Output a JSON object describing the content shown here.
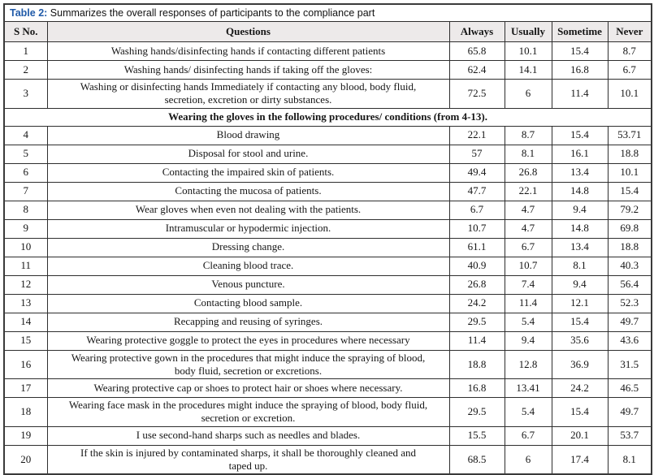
{
  "table": {
    "title_label": "Table 2:",
    "title_text": "Summarizes the overall responses of participants to the compliance part",
    "columns": [
      "S No.",
      "Questions",
      "Always",
      "Usually",
      "Sometime",
      "Never"
    ],
    "rows": [
      {
        "sno": "1",
        "question": "Washing hands/disinfecting hands if contacting different patients",
        "always": "65.8",
        "usually": "10.1",
        "sometime": "15.4",
        "never": "8.7"
      },
      {
        "sno": "2",
        "question": "Washing hands/ disinfecting hands if taking off the gloves:",
        "always": "62.4",
        "usually": "14.1",
        "sometime": "16.8",
        "never": "6.7"
      },
      {
        "sno": "3",
        "question": "Washing or disinfecting hands Immediately if contacting any blood, body fluid, secretion, excretion or dirty substances.",
        "always": "72.5",
        "usually": "6",
        "sometime": "11.4",
        "never": "10.1"
      },
      {
        "section": "Wearing the gloves in the following procedures/ conditions (from 4-13)."
      },
      {
        "sno": "4",
        "question": "Blood drawing",
        "always": "22.1",
        "usually": "8.7",
        "sometime": "15.4",
        "never": "53.71"
      },
      {
        "sno": "5",
        "question": "Disposal for stool and urine.",
        "always": "57",
        "usually": "8.1",
        "sometime": "16.1",
        "never": "18.8"
      },
      {
        "sno": "6",
        "question": "Contacting the impaired skin of patients.",
        "always": "49.4",
        "usually": "26.8",
        "sometime": "13.4",
        "never": "10.1"
      },
      {
        "sno": "7",
        "question": "Contacting the mucosa of patients.",
        "always": "47.7",
        "usually": "22.1",
        "sometime": "14.8",
        "never": "15.4"
      },
      {
        "sno": "8",
        "question": "Wear gloves when even not dealing with the patients.",
        "always": "6.7",
        "usually": "4.7",
        "sometime": "9.4",
        "never": "79.2"
      },
      {
        "sno": "9",
        "question": "Intramuscular or hypodermic injection.",
        "always": "10.7",
        "usually": "4.7",
        "sometime": "14.8",
        "never": "69.8"
      },
      {
        "sno": "10",
        "question": "Dressing change.",
        "always": "61.1",
        "usually": "6.7",
        "sometime": "13.4",
        "never": "18.8"
      },
      {
        "sno": "11",
        "question": "Cleaning blood trace.",
        "always": "40.9",
        "usually": "10.7",
        "sometime": "8.1",
        "never": "40.3"
      },
      {
        "sno": "12",
        "question": "Venous puncture.",
        "always": "26.8",
        "usually": "7.4",
        "sometime": "9.4",
        "never": "56.4"
      },
      {
        "sno": "13",
        "question": "Contacting blood sample.",
        "always": "24.2",
        "usually": "11.4",
        "sometime": "12.1",
        "never": "52.3"
      },
      {
        "sno": "14",
        "question": "Recapping and reusing of syringes.",
        "always": "29.5",
        "usually": "5.4",
        "sometime": "15.4",
        "never": "49.7"
      },
      {
        "sno": "15",
        "question": "Wearing protective goggle to protect the eyes in procedures where necessary",
        "always": "11.4",
        "usually": "9.4",
        "sometime": "35.6",
        "never": "43.6"
      },
      {
        "sno": "16",
        "question": "Wearing protective gown in the procedures that might induce the spraying of blood, body fluid, secretion or excretions.",
        "always": "18.8",
        "usually": "12.8",
        "sometime": "36.9",
        "never": "31.5"
      },
      {
        "sno": "17",
        "question": "Wearing protective cap or shoes to protect hair or shoes where necessary.",
        "always": "16.8",
        "usually": "13.41",
        "sometime": "24.2",
        "never": "46.5"
      },
      {
        "sno": "18",
        "question": "Wearing face mask in the procedures might induce the spraying of blood, body fluid, secretion or excretion.",
        "always": "29.5",
        "usually": "5.4",
        "sometime": "15.4",
        "never": "49.7"
      },
      {
        "sno": "19",
        "question": "I use second-hand sharps such as needles and blades.",
        "always": "15.5",
        "usually": "6.7",
        "sometime": "20.1",
        "never": "53.7"
      },
      {
        "sno": "20",
        "question": "If the skin is injured by contaminated sharps, it shall be thoroughly cleaned and taped up.",
        "always": "68.5",
        "usually": "6",
        "sometime": "17.4",
        "never": "8.1"
      }
    ]
  },
  "colors": {
    "title_accent": "#1f5aa8",
    "header_bg": "#edeaea",
    "border": "#2e2e2e",
    "outer_border": "#3a3a3a"
  }
}
